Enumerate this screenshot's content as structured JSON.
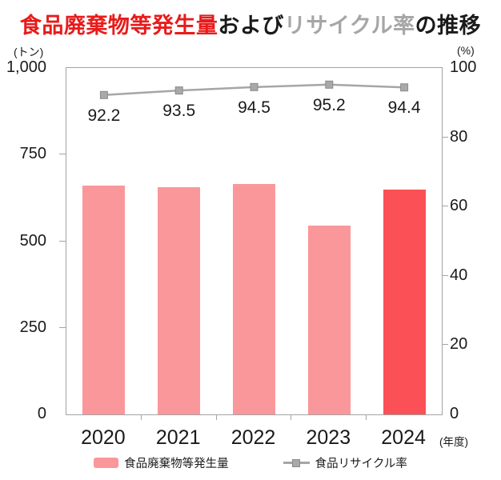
{
  "title": {
    "part1": "食品廃棄物等発生量",
    "part2": "および",
    "part3": "リサイクル率",
    "part4": "の推移"
  },
  "axes": {
    "left_unit": "(トン)",
    "right_unit": "(%)",
    "x_unit": "(年度)",
    "left_tick_labels": [
      "0",
      "250",
      "500",
      "750",
      "1,000"
    ],
    "right_tick_labels": [
      "0",
      "20",
      "40",
      "60",
      "80",
      "100"
    ]
  },
  "legend": [
    {
      "label": "食品廃棄物等発生量",
      "type": "bar",
      "color": "#fa979b"
    },
    {
      "label": "食品リサイクル率",
      "type": "line",
      "color": "#a6a6a6"
    }
  ],
  "colors": {
    "title_part1": "#e81b1b",
    "title_part3": "#a6a6a6",
    "bar_pink": "#fa979b",
    "bar_red": "#fb5056",
    "line_gray": "#a6a6a6",
    "marker_fill": "#a9a9a9",
    "marker_stroke": "#8a8a8a",
    "axis_frame": "#a3a3a3"
  },
  "chart_data": {
    "type": "bar",
    "categories": [
      "2020",
      "2021",
      "2022",
      "2023",
      "2024"
    ],
    "series": [
      {
        "name": "食品廃棄物等発生量",
        "type": "bar",
        "axis": "left",
        "values": [
          660,
          655,
          665,
          545,
          650
        ],
        "bar_colors": [
          "#fa979b",
          "#fa979b",
          "#fa979b",
          "#fa979b",
          "#fb5056"
        ]
      },
      {
        "name": "食品リサイクル率",
        "type": "line",
        "axis": "right",
        "values": [
          92.2,
          93.5,
          94.5,
          95.2,
          94.4
        ],
        "point_labels": [
          "92.2",
          "93.5",
          "94.5",
          "95.2",
          "94.4"
        ],
        "color": "#a6a6a6"
      }
    ],
    "left_axis": {
      "label": "(トン)",
      "min": 0,
      "max": 1000,
      "ticks": [
        0,
        250,
        500,
        750,
        1000
      ]
    },
    "right_axis": {
      "label": "(%)",
      "min": 0,
      "max": 100,
      "ticks": [
        0,
        20,
        40,
        60,
        80,
        100
      ]
    },
    "x_label": "(年度)",
    "legend_position": "bottom",
    "grid": false
  }
}
